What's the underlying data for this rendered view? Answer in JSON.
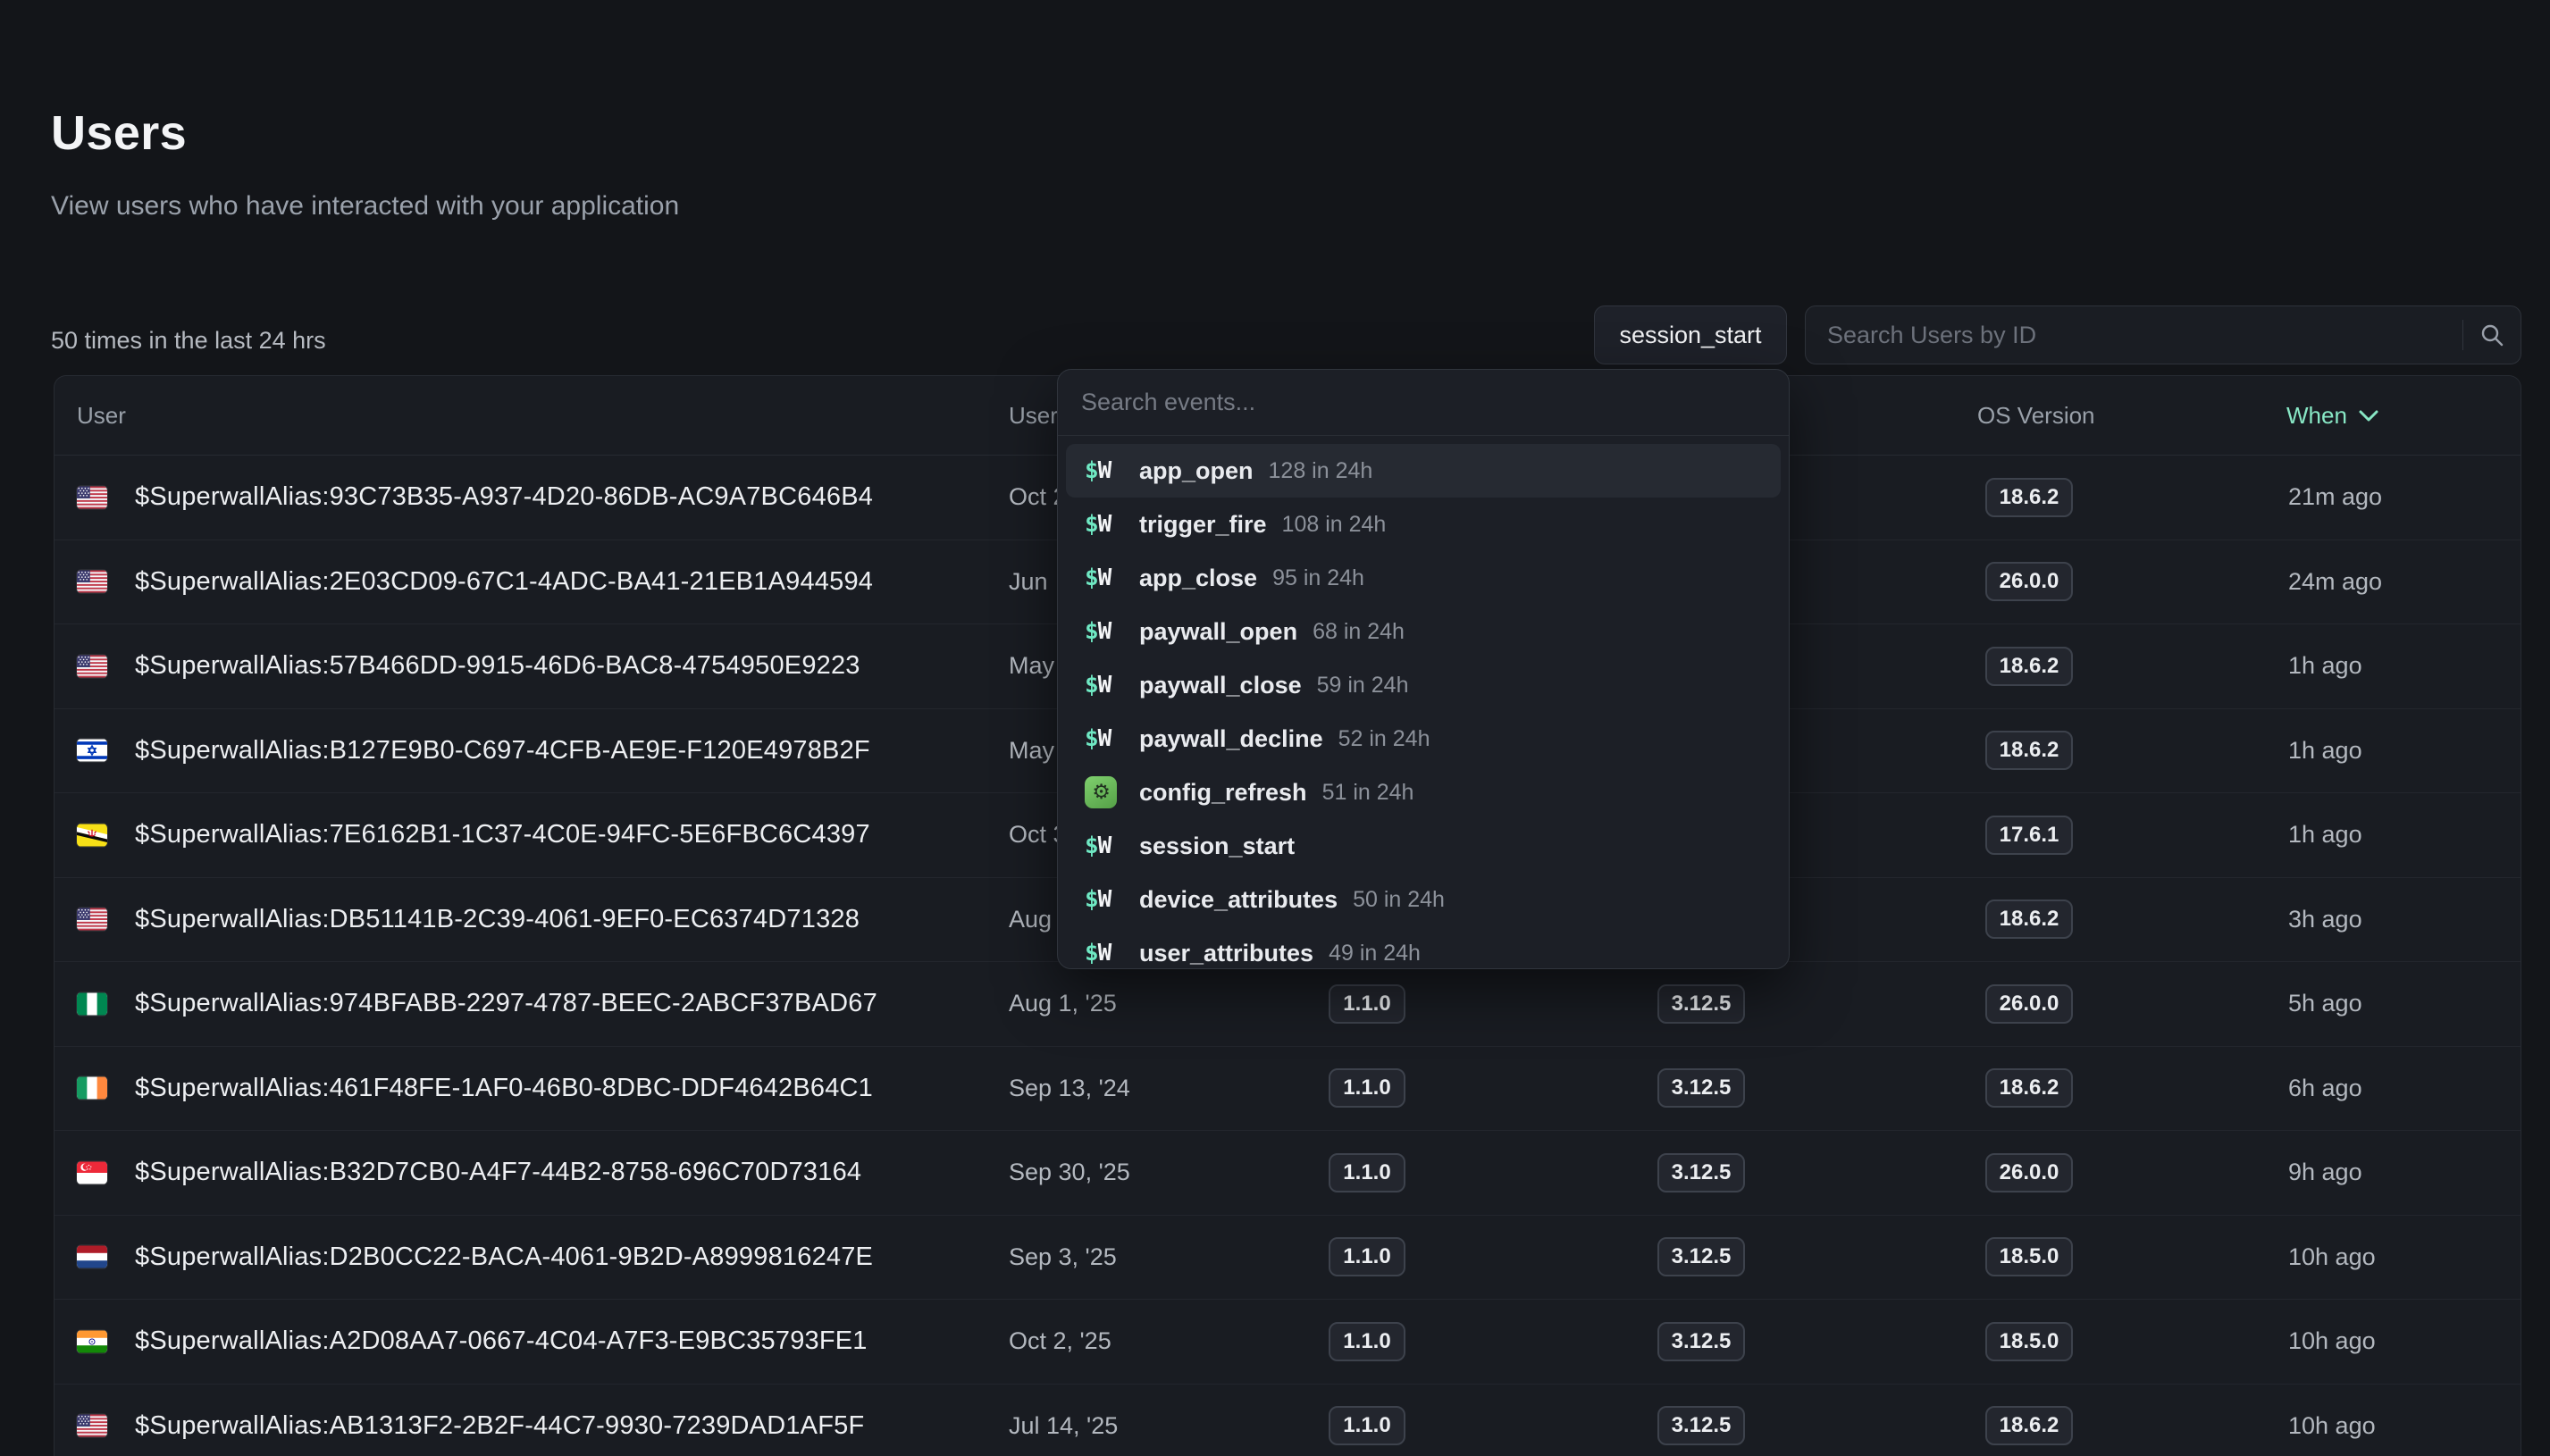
{
  "page": {
    "title": "Users",
    "subtitle": "View users who have interacted with your application",
    "summary": "50 times in the last 24 hrs"
  },
  "toolbar": {
    "event_filter_label": "session_start",
    "search_placeholder": "Search Users by ID"
  },
  "colors": {
    "accent": "#88e7c5",
    "background": "#131519",
    "panel": "#1c1f26",
    "config_icon_green": "#6fc75f"
  },
  "table": {
    "headers": {
      "user": "User",
      "user_since": "User",
      "os_version": "OS Version",
      "when": "When"
    },
    "rows": [
      {
        "flag": "us",
        "alias": "$SuperwallAlias:93C73B35-A937-4D20-86DB-AC9A7BC646B4",
        "user_since": "Oct 2",
        "app_version": null,
        "sdk_version": null,
        "os_version": "18.6.2",
        "last_seen": "21m ago"
      },
      {
        "flag": "us",
        "alias": "$SuperwallAlias:2E03CD09-67C1-4ADC-BA41-21EB1A944594",
        "user_since": "Jun",
        "app_version": null,
        "sdk_version": null,
        "os_version": "26.0.0",
        "last_seen": "24m ago"
      },
      {
        "flag": "us",
        "alias": "$SuperwallAlias:57B466DD-9915-46D6-BAC8-4754950E9223",
        "user_since": "May",
        "app_version": null,
        "sdk_version": null,
        "os_version": "18.6.2",
        "last_seen": "1h ago"
      },
      {
        "flag": "il",
        "alias": "$SuperwallAlias:B127E9B0-C697-4CFB-AE9E-F120E4978B2F",
        "user_since": "May",
        "app_version": null,
        "sdk_version": null,
        "os_version": "18.6.2",
        "last_seen": "1h ago"
      },
      {
        "flag": "bn",
        "alias": "$SuperwallAlias:7E6162B1-1C37-4C0E-94FC-5E6FBC6C4397",
        "user_since": "Oct 3",
        "app_version": null,
        "sdk_version": null,
        "os_version": "17.6.1",
        "last_seen": "1h ago"
      },
      {
        "flag": "us",
        "alias": "$SuperwallAlias:DB51141B-2C39-4061-9EF0-EC6374D71328",
        "user_since": "Aug",
        "app_version": null,
        "sdk_version": null,
        "os_version": "18.6.2",
        "last_seen": "3h ago"
      },
      {
        "flag": "ng",
        "alias": "$SuperwallAlias:974BFABB-2297-4787-BEEC-2ABCF37BAD67",
        "user_since": "Aug 1, '25",
        "app_version": "1.1.0",
        "sdk_version": "3.12.5",
        "os_version": "26.0.0",
        "last_seen": "5h ago"
      },
      {
        "flag": "ie",
        "alias": "$SuperwallAlias:461F48FE-1AF0-46B0-8DBC-DDF4642B64C1",
        "user_since": "Sep 13, '24",
        "app_version": "1.1.0",
        "sdk_version": "3.12.5",
        "os_version": "18.6.2",
        "last_seen": "6h ago"
      },
      {
        "flag": "sg",
        "alias": "$SuperwallAlias:B32D7CB0-A4F7-44B2-8758-696C70D73164",
        "user_since": "Sep 30, '25",
        "app_version": "1.1.0",
        "sdk_version": "3.12.5",
        "os_version": "26.0.0",
        "last_seen": "9h ago"
      },
      {
        "flag": "nl",
        "alias": "$SuperwallAlias:D2B0CC22-BACA-4061-9B2D-A8999816247E",
        "user_since": "Sep 3, '25",
        "app_version": "1.1.0",
        "sdk_version": "3.12.5",
        "os_version": "18.5.0",
        "last_seen": "10h ago"
      },
      {
        "flag": "in",
        "alias": "$SuperwallAlias:A2D08AA7-0667-4C04-A7F3-E9BC35793FE1",
        "user_since": "Oct 2, '25",
        "app_version": "1.1.0",
        "sdk_version": "3.12.5",
        "os_version": "18.5.0",
        "last_seen": "10h ago"
      },
      {
        "flag": "us",
        "alias": "$SuperwallAlias:AB1313F2-2B2F-44C7-9930-7239DAD1AF5F",
        "user_since": "Jul 14, '25",
        "app_version": "1.1.0",
        "sdk_version": "3.12.5",
        "os_version": "18.6.2",
        "last_seen": "10h ago"
      }
    ]
  },
  "event_dropdown": {
    "search_placeholder": "Search events...",
    "items": [
      {
        "icon": "superwall",
        "name": "app_open",
        "count": "128 in 24h",
        "highlighted": true
      },
      {
        "icon": "superwall",
        "name": "trigger_fire",
        "count": "108 in 24h"
      },
      {
        "icon": "superwall",
        "name": "app_close",
        "count": "95 in 24h"
      },
      {
        "icon": "superwall",
        "name": "paywall_open",
        "count": "68 in 24h"
      },
      {
        "icon": "superwall",
        "name": "paywall_close",
        "count": "59 in 24h"
      },
      {
        "icon": "superwall",
        "name": "paywall_decline",
        "count": "52 in 24h"
      },
      {
        "icon": "config_refresh",
        "name": "config_refresh",
        "count": "51 in 24h"
      },
      {
        "icon": "superwall",
        "name": "session_start",
        "count": null
      },
      {
        "icon": "superwall",
        "name": "device_attributes",
        "count": "50 in 24h"
      },
      {
        "icon": "superwall",
        "name": "user_attributes",
        "count": "49 in 24h"
      }
    ]
  }
}
